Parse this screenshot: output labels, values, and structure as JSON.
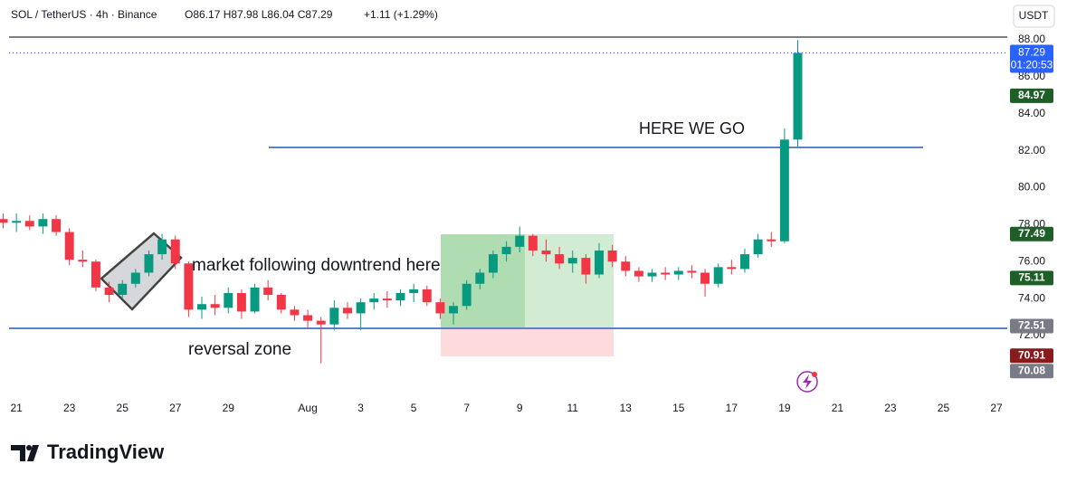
{
  "chart_data": {
    "type": "candlestick",
    "symbol": "SOL / TetherUS · 4h · Binance",
    "ohlc_readout": "O86.17 H87.98 L86.04 C87.29",
    "change": "+1.11 (+1.29%)",
    "currency": "USDT",
    "countdown": "01:20:53",
    "brand": "TradingView",
    "annotations": [
      "market following downtrend here",
      "reversal zone",
      "HERE WE GO"
    ],
    "up_color": "#089981",
    "down_color": "#f23645",
    "xlim": [
      -0.62,
      37.41
    ],
    "ylim": [
      68.72,
      88.39
    ],
    "xticks": [
      {
        "value": 0,
        "label": "21"
      },
      {
        "value": 2,
        "label": "23"
      },
      {
        "value": 4,
        "label": "25"
      },
      {
        "value": 6,
        "label": "27"
      },
      {
        "value": 8,
        "label": "29"
      },
      {
        "value": 11,
        "label": "Aug"
      },
      {
        "value": 13,
        "label": "3"
      },
      {
        "value": 15,
        "label": "5"
      },
      {
        "value": 17,
        "label": "7"
      },
      {
        "value": 19,
        "label": "9"
      },
      {
        "value": 21,
        "label": "11"
      },
      {
        "value": 23,
        "label": "13"
      },
      {
        "value": 25,
        "label": "15"
      },
      {
        "value": 27,
        "label": "17"
      },
      {
        "value": 29,
        "label": "19"
      },
      {
        "value": 31,
        "label": "21"
      },
      {
        "value": 33,
        "label": "23"
      },
      {
        "value": 35,
        "label": "25"
      },
      {
        "value": 37,
        "label": "27"
      }
    ],
    "yticks": [
      {
        "value": 72,
        "label": "72.00"
      },
      {
        "value": 74,
        "label": "74.00"
      },
      {
        "value": 76,
        "label": "76.00"
      },
      {
        "value": 78,
        "label": "78.00"
      },
      {
        "value": 80,
        "label": "80.00"
      },
      {
        "value": 82,
        "label": "82.00"
      },
      {
        "value": 84,
        "label": "84.00"
      },
      {
        "value": 86,
        "label": "86.00"
      },
      {
        "value": 88,
        "label": "88.00"
      }
    ],
    "price_tags": [
      {
        "value": 87.29,
        "color": "#2962ff"
      },
      {
        "value": 84.97,
        "color": "#1e5f28"
      },
      {
        "value": 77.49,
        "color": "#1e5f28"
      },
      {
        "value": 75.11,
        "color": "#1e5f28"
      },
      {
        "value": 72.51,
        "color": "#787b86"
      },
      {
        "value": 70.91,
        "color": "#8b1a1a"
      },
      {
        "value": 70.08,
        "color": "#787b86"
      }
    ],
    "candles": {
      "x": [
        -0.5,
        0,
        0.5,
        1,
        1.5,
        2,
        2.5,
        3,
        3.5,
        4,
        4.5,
        5,
        5.5,
        6,
        6.5,
        7,
        7.5,
        8,
        8.5,
        9,
        9.5,
        10,
        10.5,
        11,
        11.5,
        12,
        12.5,
        13,
        13.5,
        14,
        14.5,
        15,
        15.5,
        16,
        16.5,
        17,
        17.5,
        18,
        18.5,
        19,
        19.5,
        20,
        20.5,
        21,
        21.5,
        22,
        22.5,
        23,
        23.5,
        24,
        24.5,
        25,
        25.5,
        26,
        26.5,
        27,
        27.5,
        28,
        28.5,
        29,
        29.5
      ],
      "open": [
        78.3,
        78.1,
        78.2,
        77.9,
        78.3,
        77.6,
        76.1,
        76.0,
        74.6,
        74.2,
        74.8,
        75.4,
        76.4,
        77.2,
        75.9,
        73.4,
        73.7,
        73.5,
        74.3,
        73.3,
        74.6,
        74.2,
        73.4,
        73.1,
        72.8,
        72.6,
        73.5,
        73.2,
        73.8,
        74.0,
        73.9,
        74.3,
        74.5,
        73.8,
        73.2,
        73.6,
        74.8,
        75.4,
        76.4,
        76.8,
        77.4,
        76.6,
        76.4,
        75.9,
        76.2,
        75.3,
        76.6,
        76.0,
        75.5,
        75.2,
        75.4,
        75.3,
        75.5,
        75.4,
        74.8,
        75.7,
        75.6,
        76.4,
        77.2,
        77.1,
        82.6
      ],
      "high": [
        78.6,
        78.6,
        78.5,
        78.6,
        78.5,
        77.8,
        76.6,
        76.1,
        74.9,
        75.0,
        75.6,
        76.6,
        77.5,
        77.4,
        76.0,
        74.1,
        74.2,
        74.6,
        74.5,
        74.8,
        75.0,
        74.3,
        73.6,
        73.4,
        73.0,
        73.9,
        73.8,
        74.0,
        74.3,
        74.4,
        74.5,
        74.8,
        74.7,
        74.0,
        73.8,
        75.0,
        75.6,
        76.6,
        77.1,
        77.9,
        77.5,
        77.2,
        76.8,
        76.6,
        76.4,
        77.0,
        76.9,
        76.3,
        75.7,
        75.6,
        75.7,
        75.7,
        75.8,
        75.6,
        75.9,
        76.1,
        76.7,
        77.5,
        77.6,
        83.2,
        87.98
      ],
      "low": [
        77.8,
        77.6,
        77.7,
        77.5,
        77.4,
        75.8,
        75.7,
        74.4,
        73.8,
        74.0,
        74.6,
        75.2,
        76.1,
        75.6,
        73.0,
        72.9,
        73.1,
        73.2,
        72.9,
        73.2,
        73.9,
        73.2,
        72.8,
        72.4,
        70.5,
        72.3,
        72.9,
        72.3,
        73.4,
        73.5,
        73.6,
        73.8,
        73.6,
        72.9,
        72.6,
        73.4,
        74.5,
        75.1,
        76.0,
        76.5,
        76.3,
        76.0,
        75.6,
        75.4,
        74.8,
        75.1,
        75.7,
        75.2,
        74.9,
        74.9,
        75.0,
        75.0,
        75.1,
        74.1,
        74.6,
        75.3,
        75.4,
        76.2,
        76.8,
        77.0,
        82.2
      ],
      "close": [
        78.1,
        78.2,
        77.9,
        78.3,
        77.6,
        76.1,
        76.0,
        74.6,
        74.2,
        74.8,
        75.4,
        76.4,
        77.2,
        75.9,
        73.4,
        73.7,
        73.5,
        74.3,
        73.3,
        74.6,
        74.2,
        73.4,
        73.1,
        72.8,
        72.6,
        73.5,
        73.2,
        73.8,
        74.0,
        73.9,
        74.3,
        74.5,
        73.8,
        73.2,
        73.6,
        74.8,
        75.4,
        76.4,
        76.8,
        77.4,
        76.6,
        76.4,
        75.9,
        76.2,
        75.3,
        76.6,
        76.0,
        75.5,
        75.2,
        75.4,
        75.3,
        75.5,
        75.4,
        74.8,
        75.7,
        75.6,
        76.4,
        77.2,
        77.1,
        82.6,
        87.29
      ]
    }
  }
}
